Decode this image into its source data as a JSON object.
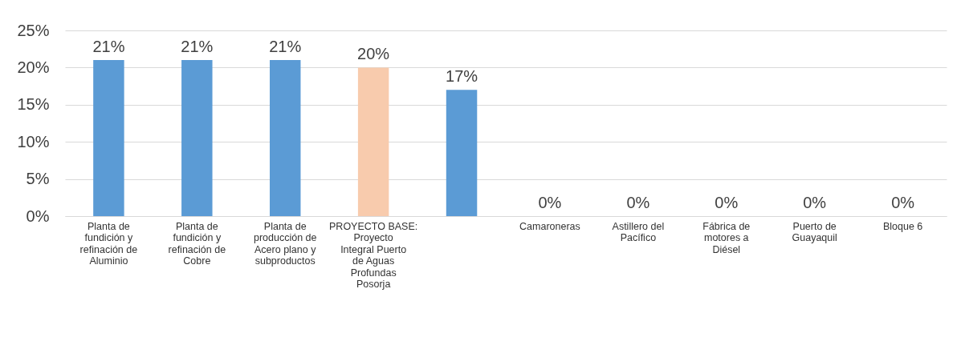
{
  "chart_data": {
    "type": "bar",
    "categories": [
      "Planta de fundición y refinación de Aluminio",
      "Planta de fundición y refinación de Cobre",
      "Planta de producción de Acero plano y subproductos",
      "PROYECTO BASE: Proyecto Integral Puerto de Aguas Profundas Posorja",
      null,
      "Camaroneras",
      "Astillero del Pacífico",
      "Fábrica de motores a Diésel",
      "Puerto de Guayaquil",
      "Bloque 6"
    ],
    "values": [
      21,
      21,
      21,
      20,
      17,
      0,
      0,
      0,
      0,
      0
    ],
    "colors": [
      "#5b9bd5",
      "#5b9bd5",
      "#5b9bd5",
      "#f8cbad",
      "#5b9bd5",
      "#5b9bd5",
      "#5b9bd5",
      "#5b9bd5",
      "#5b9bd5",
      "#5b9bd5"
    ],
    "value_labels": [
      "21%",
      "21%",
      "21%",
      "20%",
      "17%",
      "0%",
      "0%",
      "0%",
      "0%",
      "0%"
    ],
    "ylim": [
      0,
      25
    ],
    "yticks": [
      {
        "value": 0,
        "label": "0%"
      },
      {
        "value": 5,
        "label": "5%"
      },
      {
        "value": 10,
        "label": "10%"
      },
      {
        "value": 15,
        "label": "15%"
      },
      {
        "value": 20,
        "label": "20%"
      },
      {
        "value": 25,
        "label": "25%"
      }
    ],
    "grid": "y"
  }
}
